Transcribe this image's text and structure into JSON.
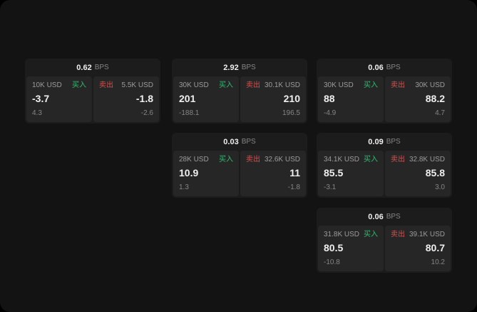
{
  "labels": {
    "bps": "BPS",
    "buy": "买入",
    "sell": "卖出"
  },
  "colors": {
    "buy": "#2fbf71",
    "sell": "#d5504e",
    "text_bright": "#efefef",
    "text_mid": "#9b9b9b",
    "text_dim": "#858585"
  },
  "cards": [
    {
      "bps": "0.62",
      "buy": {
        "amount": "10K USD",
        "value": "-3.7",
        "sub": "4.3"
      },
      "sell": {
        "amount": "5.5K USD",
        "value": "-1.8",
        "sub": "-2.6"
      }
    },
    {
      "bps": "2.92",
      "buy": {
        "amount": "30K USD",
        "value": "201",
        "sub": "-188.1"
      },
      "sell": {
        "amount": "30.1K USD",
        "value": "210",
        "sub": "196.5"
      }
    },
    {
      "bps": "0.06",
      "buy": {
        "amount": "30K USD",
        "value": "88",
        "sub": "-4.9"
      },
      "sell": {
        "amount": "30K USD",
        "value": "88.2",
        "sub": "4.7"
      }
    },
    {
      "bps": "0.03",
      "buy": {
        "amount": "28K USD",
        "value": "10.9",
        "sub": "1.3"
      },
      "sell": {
        "amount": "32.6K USD",
        "value": "11",
        "sub": "-1.8"
      }
    },
    {
      "bps": "0.09",
      "buy": {
        "amount": "34.1K USD",
        "value": "85.5",
        "sub": "-3.1"
      },
      "sell": {
        "amount": "32.8K USD",
        "value": "85.8",
        "sub": "3.0"
      }
    },
    {
      "bps": "0.06",
      "buy": {
        "amount": "31.8K USD",
        "value": "80.5",
        "sub": "-10.8"
      },
      "sell": {
        "amount": "39.1K USD",
        "value": "80.7",
        "sub": "10.2"
      }
    }
  ]
}
